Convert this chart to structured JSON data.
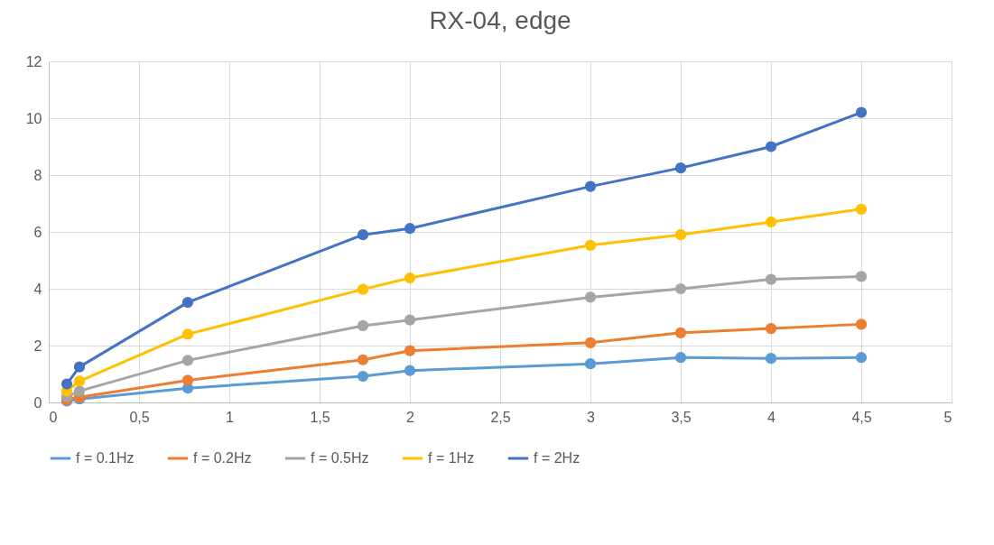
{
  "chart_data": {
    "type": "line",
    "title": "RX-04, edge",
    "x": [
      0.1,
      0.17,
      0.77,
      1.74,
      2,
      3,
      3.5,
      4,
      4.5
    ],
    "series": [
      {
        "name": "f = 0.1Hz",
        "color": "#5b9bd5",
        "values": [
          0.05,
          0.12,
          0.5,
          0.92,
          1.12,
          1.36,
          1.58,
          1.55,
          1.58
        ]
      },
      {
        "name": "f = 0.2Hz",
        "color": "#ed7d31",
        "values": [
          0.1,
          0.18,
          0.78,
          1.5,
          1.82,
          2.1,
          2.45,
          2.6,
          2.75
        ]
      },
      {
        "name": "f = 0.5Hz",
        "color": "#a5a5a5",
        "values": [
          0.2,
          0.4,
          1.48,
          2.7,
          2.9,
          3.7,
          4.0,
          4.33,
          4.43
        ]
      },
      {
        "name": "f = 1Hz",
        "color": "#ffc000",
        "values": [
          0.4,
          0.75,
          2.4,
          3.98,
          4.38,
          5.53,
          5.9,
          6.35,
          6.8
        ]
      },
      {
        "name": "f = 2Hz",
        "color": "#4472c4",
        "values": [
          0.65,
          1.25,
          3.52,
          5.9,
          6.12,
          7.6,
          8.25,
          9.0,
          10.2
        ]
      }
    ],
    "xlim": [
      0,
      5
    ],
    "xticks": [
      0,
      {
        "value": 0.5,
        "label": "0,5"
      },
      1,
      {
        "value": 1.5,
        "label": "1,5"
      },
      2,
      {
        "value": 2.5,
        "label": "2,5"
      },
      3,
      {
        "value": 3.5,
        "label": "3,5"
      },
      4,
      {
        "value": 4.5,
        "label": "4,5"
      },
      5
    ],
    "ylim": [
      0,
      12
    ],
    "yticks": [
      0,
      2,
      4,
      6,
      8,
      10,
      12
    ],
    "grid": true,
    "legend": "bottom",
    "marker": "circle",
    "line_style": "solid"
  }
}
